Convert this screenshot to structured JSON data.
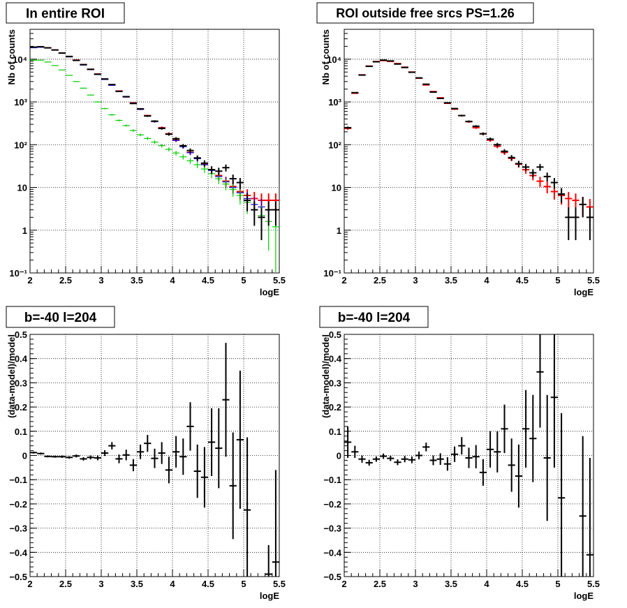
{
  "canvas_title": "",
  "chart_data": [
    {
      "type": "scatter",
      "title": "In entire ROI",
      "xlabel": "logE",
      "ylabel": "Nb of counts",
      "xlim": [
        2,
        5.5
      ],
      "ylim": [
        0.1,
        50000
      ],
      "yscale": "log",
      "grid": true,
      "legend": "none",
      "x_ticks": [
        "2",
        "2.5",
        "3",
        "3.5",
        "4",
        "4.5",
        "5",
        "5.5"
      ],
      "y_ticks": [
        "10⁻¹",
        "1",
        "10",
        "10²",
        "10³",
        "10⁴"
      ],
      "series": [
        {
          "color": "#ff0000",
          "x": [
            2.05,
            2.15,
            2.25,
            2.35,
            2.45,
            2.55,
            2.65,
            2.75,
            2.85,
            2.95,
            3.05,
            3.15,
            3.25,
            3.35,
            3.45,
            3.55,
            3.65,
            3.75,
            3.85,
            3.95,
            4.05,
            4.15,
            4.25,
            4.35,
            4.45,
            4.55,
            4.65,
            4.75,
            4.85,
            4.95,
            5.05,
            5.15,
            5.25,
            5.35,
            5.45
          ],
          "y": [
            19000,
            19500,
            18500,
            16500,
            14000,
            11500,
            9500,
            7500,
            5800,
            4500,
            3400,
            2500,
            1800,
            1320,
            950,
            680,
            480,
            350,
            250,
            180,
            128,
            92,
            66,
            48,
            35,
            26,
            19,
            14,
            10.5,
            8,
            6.5,
            5.5,
            5,
            5,
            5
          ]
        },
        {
          "color": "#0000ff",
          "x": [
            2.05,
            2.15,
            2.25,
            2.35,
            2.45,
            2.55,
            2.65,
            2.75,
            2.85,
            2.95,
            3.05,
            3.15,
            3.25,
            3.35,
            3.45,
            3.55,
            3.65,
            3.75,
            3.85,
            3.95,
            4.05,
            4.15,
            4.25,
            4.35,
            4.45,
            4.55,
            4.65,
            4.75,
            4.85,
            4.95,
            5.05,
            5.15,
            5.25,
            5.35,
            5.45
          ],
          "y": [
            18500,
            19000,
            18200,
            16300,
            13800,
            11300,
            9300,
            7300,
            5700,
            4400,
            3350,
            2450,
            1780,
            1300,
            940,
            670,
            470,
            345,
            245,
            176,
            126,
            90,
            65,
            47,
            34,
            25,
            18,
            13.5,
            10,
            7.5,
            5.5,
            4,
            3.5,
            3,
            3
          ]
        },
        {
          "color": "#00cc00",
          "x": [
            2.05,
            2.15,
            2.25,
            2.35,
            2.45,
            2.55,
            2.65,
            2.75,
            2.85,
            2.95,
            3.05,
            3.15,
            3.25,
            3.35,
            3.45,
            3.55,
            3.65,
            3.75,
            3.85,
            3.95,
            4.05,
            4.15,
            4.25,
            4.35,
            4.45,
            4.55,
            4.65,
            4.75,
            4.85,
            4.95,
            5.05,
            5.15,
            5.25,
            5.35,
            5.45
          ],
          "y": [
            9500,
            9500,
            8600,
            7100,
            5600,
            4200,
            3000,
            2100,
            1450,
            1000,
            700,
            500,
            370,
            280,
            215,
            170,
            140,
            115,
            95,
            78,
            64,
            52,
            42,
            34,
            27,
            21,
            16,
            12,
            9,
            6.5,
            4.5,
            3,
            2.2,
            1.6,
            1.2
          ]
        },
        {
          "color": "#000000",
          "x": [
            2.05,
            2.15,
            2.25,
            2.35,
            2.45,
            2.55,
            2.65,
            2.75,
            2.85,
            2.95,
            3.05,
            3.15,
            3.25,
            3.35,
            3.45,
            3.55,
            3.65,
            3.75,
            3.85,
            3.95,
            4.05,
            4.15,
            4.25,
            4.35,
            4.45,
            4.55,
            4.65,
            4.75,
            4.85,
            4.95,
            5.05,
            5.15,
            5.25,
            5.35,
            5.45
          ],
          "y": [
            19200,
            19600,
            18400,
            16400,
            13900,
            11600,
            9400,
            7450,
            5800,
            4450,
            3450,
            2550,
            1770,
            1330,
            920,
            690,
            470,
            355,
            240,
            176,
            138,
            94,
            73,
            49,
            37,
            26,
            24,
            29,
            16,
            13,
            5,
            3,
            2,
            3,
            3
          ]
        }
      ]
    },
    {
      "type": "scatter",
      "title": "ROI outside free srcs PS=1.26",
      "xlabel": "logE",
      "ylabel": "Nb of counts",
      "xlim": [
        2,
        5.5
      ],
      "ylim": [
        0.1,
        50000
      ],
      "yscale": "log",
      "grid": true,
      "legend": "none",
      "x_ticks": [
        "2",
        "2.5",
        "3",
        "3.5",
        "4",
        "4.5",
        "5",
        "5.5"
      ],
      "y_ticks": [
        "10⁻¹",
        "1",
        "10",
        "10²",
        "10³",
        "10⁴"
      ],
      "series": [
        {
          "color": "#ff0000",
          "x": [
            2.05,
            2.15,
            2.25,
            2.35,
            2.45,
            2.55,
            2.65,
            2.75,
            2.85,
            2.95,
            3.05,
            3.15,
            3.25,
            3.35,
            3.45,
            3.55,
            3.65,
            3.75,
            3.85,
            3.95,
            4.05,
            4.15,
            4.25,
            4.35,
            4.45,
            4.55,
            4.65,
            4.75,
            4.85,
            4.95,
            5.05,
            5.15,
            5.25,
            5.35,
            5.45
          ],
          "y": [
            240,
            1600,
            4300,
            6900,
            8800,
            9300,
            8900,
            7900,
            6500,
            5000,
            3600,
            2500,
            1750,
            1250,
            930,
            680,
            480,
            345,
            250,
            180,
            128,
            92,
            66,
            48,
            35,
            26,
            19,
            14,
            10.5,
            8,
            6.5,
            5.5,
            5,
            4,
            3.5
          ]
        },
        {
          "color": "#000000",
          "x": [
            2.05,
            2.15,
            2.25,
            2.35,
            2.45,
            2.55,
            2.65,
            2.75,
            2.85,
            2.95,
            3.05,
            3.15,
            3.25,
            3.35,
            3.45,
            3.55,
            3.65,
            3.75,
            3.85,
            3.95,
            4.05,
            4.15,
            4.25,
            4.35,
            4.45,
            4.55,
            4.65,
            4.75,
            4.85,
            4.95,
            5.05,
            5.15,
            5.25,
            5.35,
            5.45
          ],
          "y": [
            250,
            1650,
            4250,
            6800,
            8700,
            9500,
            9100,
            7700,
            6400,
            4950,
            3650,
            2600,
            1700,
            1210,
            950,
            700,
            480,
            350,
            270,
            180,
            135,
            100,
            70,
            50,
            36,
            30,
            22,
            30,
            18,
            13,
            7,
            2,
            2,
            4,
            2
          ]
        }
      ]
    },
    {
      "type": "scatter",
      "title": "b=-40 l=204",
      "xlabel": "logE",
      "ylabel": "(data-model)/model",
      "xlim": [
        2,
        5.5
      ],
      "ylim": [
        -0.5,
        0.5
      ],
      "grid": true,
      "legend": "none",
      "x_ticks": [
        "2",
        "2.5",
        "3",
        "3.5",
        "4",
        "4.5",
        "5",
        "5.5"
      ],
      "y_ticks": [
        "−0.5",
        "−0.4",
        "−0.3",
        "−0.2",
        "−0.1",
        "0",
        "0.1",
        "0.2",
        "0.3",
        "0.4",
        "0.5"
      ],
      "points": [
        [
          2.05,
          0.012,
          0.004
        ],
        [
          2.15,
          0.008,
          0.004
        ],
        [
          2.25,
          -0.004,
          0.004
        ],
        [
          2.35,
          -0.005,
          0.004
        ],
        [
          2.45,
          -0.005,
          0.005
        ],
        [
          2.55,
          -0.008,
          0.005
        ],
        [
          2.65,
          -0.002,
          0.006
        ],
        [
          2.75,
          -0.014,
          0.007
        ],
        [
          2.85,
          -0.008,
          0.008
        ],
        [
          2.95,
          -0.01,
          0.01
        ],
        [
          3.05,
          0.01,
          0.012
        ],
        [
          3.15,
          0.04,
          0.015
        ],
        [
          3.25,
          -0.014,
          0.018
        ],
        [
          3.35,
          0.002,
          0.022
        ],
        [
          3.45,
          -0.04,
          0.025
        ],
        [
          3.55,
          0.015,
          0.03
        ],
        [
          3.65,
          0.05,
          0.035
        ],
        [
          3.75,
          -0.012,
          0.04
        ],
        [
          3.85,
          0.01,
          0.045
        ],
        [
          3.95,
          -0.06,
          0.055
        ],
        [
          4.05,
          0.015,
          0.065
        ],
        [
          4.15,
          -0.005,
          0.075
        ],
        [
          4.25,
          0.12,
          0.1
        ],
        [
          4.35,
          -0.065,
          0.11
        ],
        [
          4.45,
          -0.09,
          0.125
        ],
        [
          4.55,
          0.055,
          0.14
        ],
        [
          4.65,
          0.03,
          0.165
        ],
        [
          4.75,
          0.23,
          0.235
        ],
        [
          4.85,
          -0.125,
          0.22
        ],
        [
          4.95,
          0.065,
          0.285
        ],
        [
          5.05,
          -0.225,
          0.3
        ],
        [
          5.35,
          -0.49,
          0.12
        ],
        [
          5.45,
          -0.44,
          0.38
        ]
      ]
    },
    {
      "type": "scatter",
      "title": "b=-40 l=204",
      "xlabel": "logE",
      "ylabel": "(data-model)/model",
      "xlim": [
        2,
        5.5
      ],
      "ylim": [
        -0.5,
        0.5
      ],
      "grid": true,
      "legend": "none",
      "x_ticks": [
        "2",
        "2.5",
        "3",
        "3.5",
        "4",
        "4.5",
        "5",
        "5.5"
      ],
      "y_ticks": [
        "−0.5",
        "−0.4",
        "−0.3",
        "−0.2",
        "−0.1",
        "0",
        "0.1",
        "0.2",
        "0.3",
        "0.4",
        "0.5"
      ],
      "points": [
        [
          2.05,
          0.055,
          0.065
        ],
        [
          2.15,
          0.015,
          0.025
        ],
        [
          2.25,
          -0.015,
          0.015
        ],
        [
          2.35,
          -0.03,
          0.012
        ],
        [
          2.45,
          -0.015,
          0.011
        ],
        [
          2.55,
          -0.003,
          0.011
        ],
        [
          2.65,
          -0.012,
          0.011
        ],
        [
          2.75,
          -0.028,
          0.012
        ],
        [
          2.85,
          -0.015,
          0.013
        ],
        [
          2.95,
          -0.018,
          0.014
        ],
        [
          3.05,
          0.0,
          0.016
        ],
        [
          3.15,
          0.035,
          0.018
        ],
        [
          3.25,
          -0.02,
          0.02
        ],
        [
          3.35,
          -0.015,
          0.024
        ],
        [
          3.45,
          -0.035,
          0.028
        ],
        [
          3.55,
          0.005,
          0.032
        ],
        [
          3.65,
          0.04,
          0.036
        ],
        [
          3.75,
          -0.01,
          0.042
        ],
        [
          3.85,
          -0.005,
          0.048
        ],
        [
          3.95,
          -0.07,
          0.055
        ],
        [
          4.05,
          0.025,
          0.075
        ],
        [
          4.15,
          0.015,
          0.085
        ],
        [
          4.25,
          0.11,
          0.1
        ],
        [
          4.35,
          -0.04,
          0.11
        ],
        [
          4.45,
          -0.085,
          0.13
        ],
        [
          4.55,
          0.11,
          0.16
        ],
        [
          4.65,
          0.07,
          0.18
        ],
        [
          4.75,
          0.345,
          0.23
        ],
        [
          4.85,
          -0.01,
          0.26
        ],
        [
          4.95,
          0.24,
          0.29
        ],
        [
          5.05,
          -0.175,
          0.35
        ],
        [
          5.35,
          -0.25,
          0.33
        ],
        [
          5.45,
          -0.41,
          0.4
        ]
      ]
    }
  ]
}
